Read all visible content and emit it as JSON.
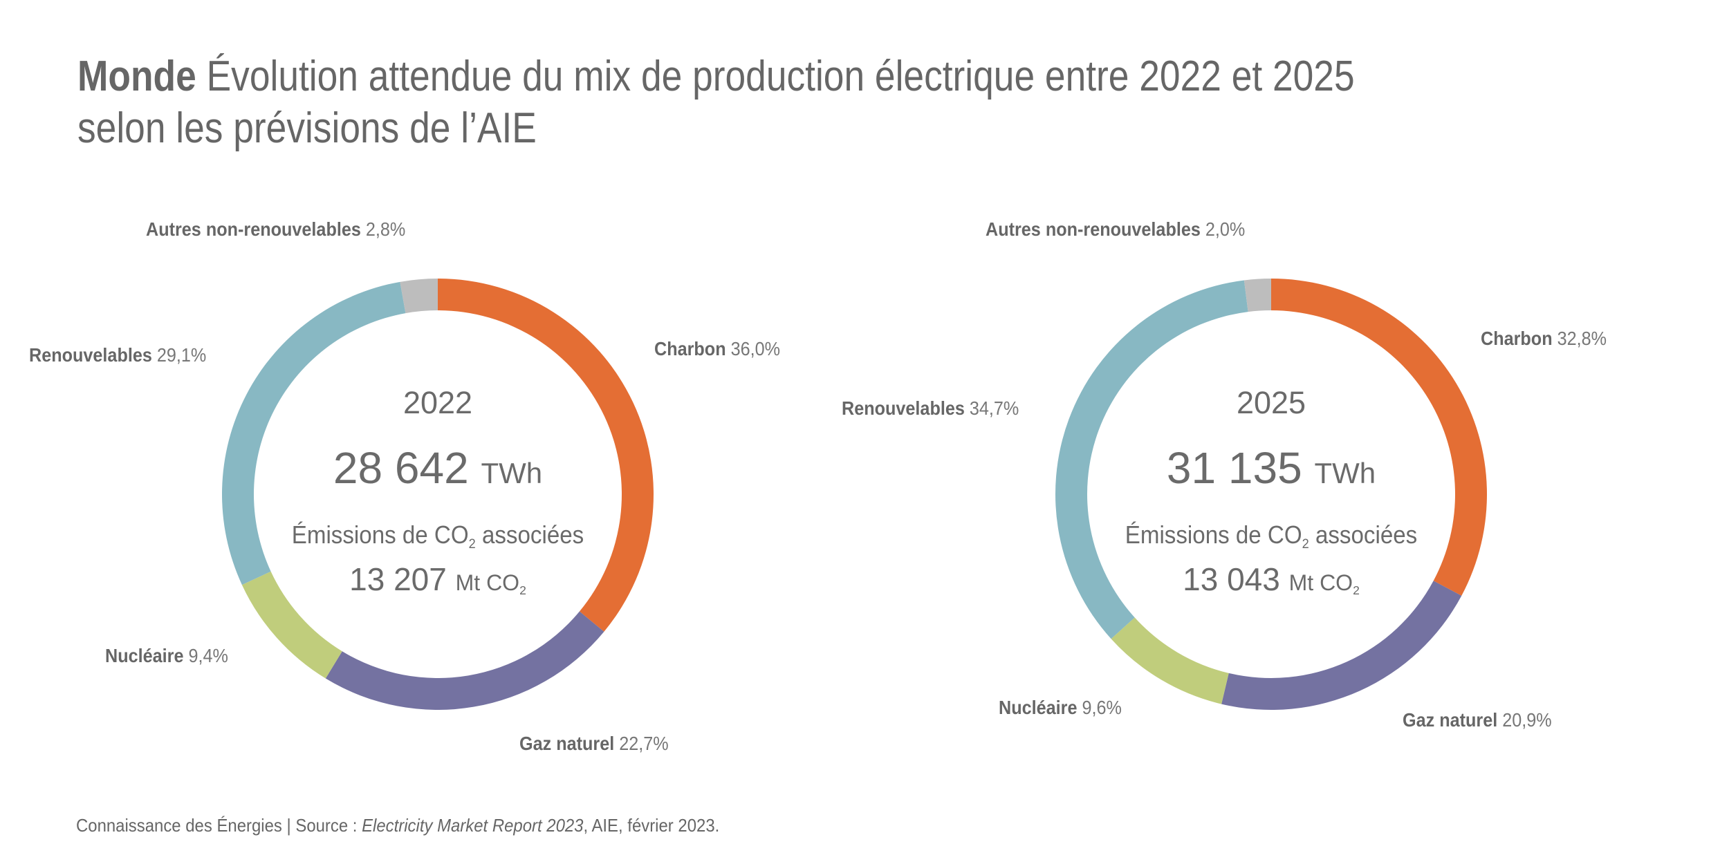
{
  "title": {
    "bold": "Monde",
    "line1": "Évolution attendue du mix de production électrique entre 2022 et 2025",
    "line2": "selon les prévisions de l’AIE"
  },
  "colors": {
    "Charbon": "#e46e34",
    "Gaz naturel": "#7472a1",
    "Nucléaire": "#c0cd7c",
    "Renouvelables": "#88b8c3",
    "Autres non-renouvelables": "#bdbdbd",
    "text": "#666666"
  },
  "chart_data": [
    {
      "type": "pie",
      "variant": "donut",
      "title": "2022",
      "center": {
        "year": "2022",
        "total_value": "28 642",
        "total_unit": "TWh",
        "emissions_label_pre": "Émissions de CO",
        "emissions_label_sub": "2",
        "emissions_label_post": " associées",
        "emissions_value": "13 207",
        "emissions_unit": "Mt CO",
        "emissions_unit_sub": "2"
      },
      "categories": [
        "Charbon",
        "Gaz naturel",
        "Nucléaire",
        "Renouvelables",
        "Autres non-renouvelables"
      ],
      "values": [
        36.0,
        22.7,
        9.4,
        29.1,
        2.8
      ],
      "labels": [
        "36,0%",
        "22,7%",
        "9,4%",
        "29,1%",
        "2,8%"
      ],
      "start": "top",
      "direction": "clockwise"
    },
    {
      "type": "pie",
      "variant": "donut",
      "title": "2025",
      "center": {
        "year": "2025",
        "total_value": "31 135",
        "total_unit": "TWh",
        "emissions_label_pre": "Émissions de CO",
        "emissions_label_sub": "2",
        "emissions_label_post": " associées",
        "emissions_value": "13 043",
        "emissions_unit": "Mt CO",
        "emissions_unit_sub": "2"
      },
      "categories": [
        "Charbon",
        "Gaz naturel",
        "Nucléaire",
        "Renouvelables",
        "Autres non-renouvelables"
      ],
      "values": [
        32.8,
        20.9,
        9.6,
        34.7,
        2.0
      ],
      "labels": [
        "32,8%",
        "20,9%",
        "9,6%",
        "34,7%",
        "2,0%"
      ],
      "start": "top",
      "direction": "clockwise"
    }
  ],
  "footer": {
    "pre": "Connaissance des Énergies | Source : ",
    "italic": "Electricity Market Report 2023",
    "post": ", AIE, février 2023."
  }
}
